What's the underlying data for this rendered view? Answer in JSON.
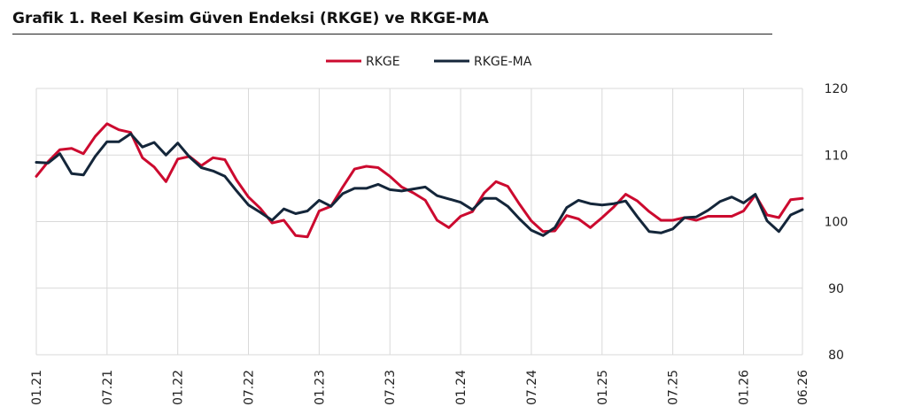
{
  "title": "Grafik 1. Reel Kesim Güven Endeksi (RKGE) ve RKGE-MA",
  "colors": {
    "rkge": "#cc0a2f",
    "rkge_ma": "#14263a",
    "grid": "#d9d9d9"
  },
  "chart_data": {
    "type": "line",
    "title": "Grafik 1. Reel Kesim Güven Endeksi (RKGE) ve RKGE-MA",
    "xlabel": "",
    "ylabel": "",
    "ylim": [
      80,
      120
    ],
    "yticks": [
      120,
      110,
      100,
      90,
      80
    ],
    "x_tick_labels": [
      "01.21",
      "07.21",
      "01.22",
      "07.22",
      "01.23",
      "07.23",
      "01.24",
      "07.24",
      "01.25",
      "07.25",
      "01.26",
      "06.26"
    ],
    "x_tick_index": [
      0,
      6,
      12,
      18,
      24,
      30,
      36,
      42,
      48,
      54,
      60,
      65
    ],
    "grid": "vertical at x ticks, horizontal at y ticks",
    "legend": "top-center",
    "series": [
      {
        "name": "RKGE",
        "color": "#cc0a2f",
        "values": [
          106.8,
          109.0,
          110.8,
          111.0,
          110.2,
          112.8,
          114.7,
          113.8,
          113.4,
          109.6,
          108.2,
          106.0,
          109.4,
          109.8,
          108.4,
          109.6,
          109.3,
          106.2,
          103.7,
          102.0,
          99.8,
          100.2,
          97.9,
          97.7,
          101.6,
          102.3,
          105.2,
          107.9,
          108.3,
          108.1,
          106.8,
          105.2,
          104.3,
          103.2,
          100.2,
          99.1,
          100.8,
          101.5,
          104.3,
          106.0,
          105.3,
          102.6,
          100.1,
          98.5,
          98.6,
          100.9,
          100.4,
          99.1,
          100.6,
          102.2,
          104.1,
          103.1,
          101.5,
          100.2,
          100.2,
          100.6,
          100.2,
          100.8,
          100.8,
          100.8,
          101.6,
          104.0,
          101.0,
          100.6,
          103.3,
          103.5
        ]
      },
      {
        "name": "RKGE-MA",
        "color": "#14263a",
        "values": [
          108.9,
          108.8,
          110.2,
          107.2,
          107.0,
          109.8,
          112.0,
          112.0,
          113.2,
          111.2,
          111.9,
          110.0,
          111.8,
          109.7,
          108.1,
          107.6,
          106.8,
          104.6,
          102.5,
          101.4,
          100.2,
          101.9,
          101.2,
          101.6,
          103.2,
          102.3,
          104.2,
          105.0,
          105.0,
          105.6,
          104.8,
          104.6,
          104.9,
          105.2,
          103.9,
          103.4,
          102.9,
          101.8,
          103.5,
          103.5,
          102.3,
          100.4,
          98.7,
          97.9,
          99.1,
          102.1,
          103.2,
          102.7,
          102.5,
          102.7,
          103.1,
          100.7,
          98.5,
          98.3,
          98.9,
          100.6,
          100.7,
          101.7,
          103.0,
          103.7,
          102.8,
          104.1,
          100.1,
          98.5,
          101.0,
          101.8
        ]
      }
    ]
  }
}
